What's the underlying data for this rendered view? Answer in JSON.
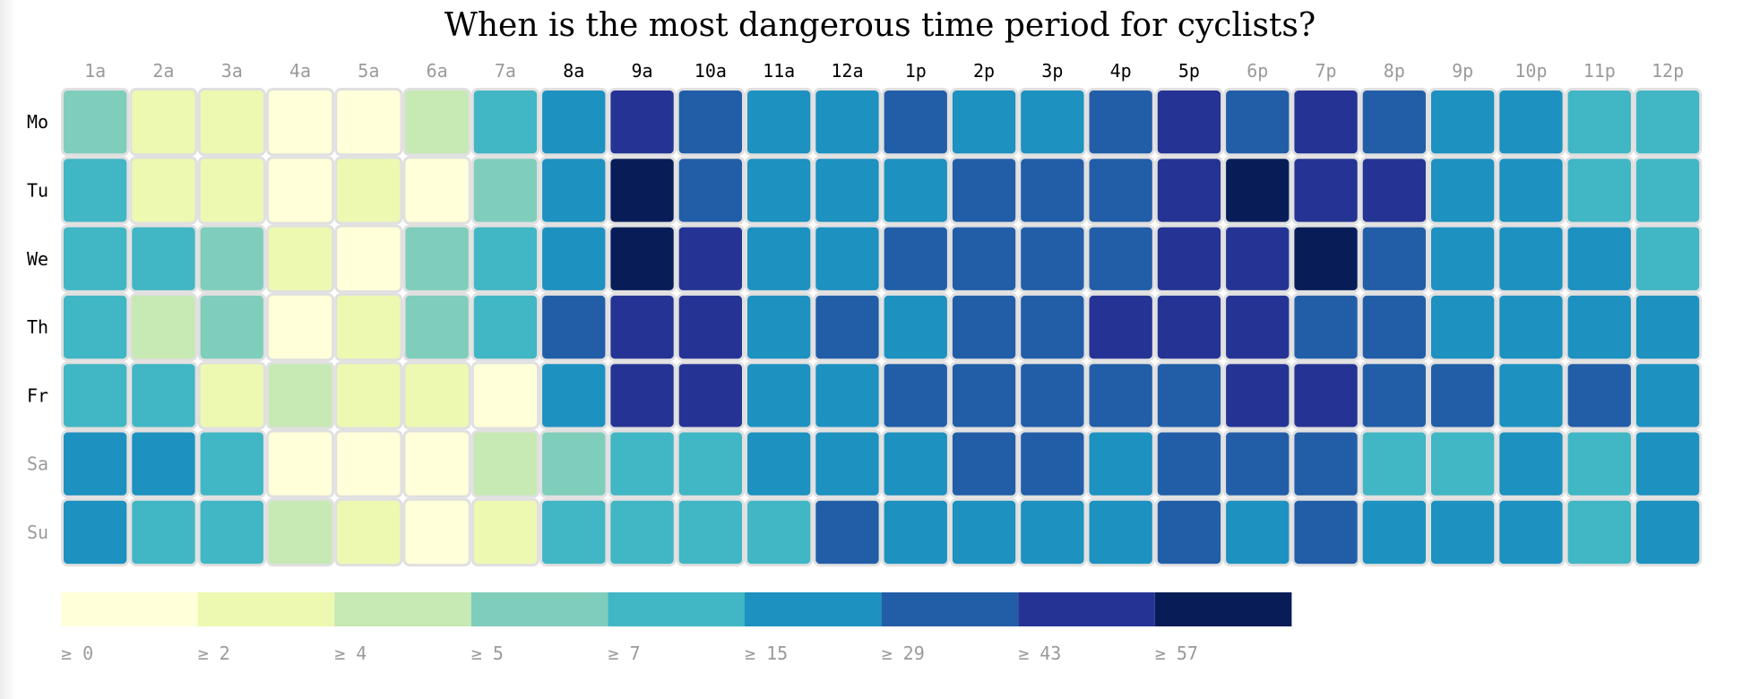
{
  "chart_data": {
    "type": "heatmap",
    "title": "When is the most dangerous time period for cyclists?",
    "x": [
      "1a",
      "2a",
      "3a",
      "4a",
      "5a",
      "6a",
      "7a",
      "8a",
      "9a",
      "10a",
      "11a",
      "12a",
      "1p",
      "2p",
      "3p",
      "4p",
      "5p",
      "6p",
      "7p",
      "8p",
      "9p",
      "10p",
      "11p",
      "12p"
    ],
    "y": [
      "Mo",
      "Tu",
      "We",
      "Th",
      "Fr",
      "Sa",
      "Su"
    ],
    "x_highlight": [
      false,
      false,
      false,
      false,
      false,
      false,
      false,
      true,
      true,
      true,
      true,
      true,
      true,
      true,
      true,
      true,
      true,
      false,
      false,
      false,
      false,
      false,
      false,
      false
    ],
    "y_highlight": [
      true,
      true,
      true,
      true,
      true,
      false,
      false
    ],
    "thresholds": [
      0,
      2,
      4,
      5,
      7,
      15,
      29,
      43,
      57
    ],
    "colors": [
      "#ffffd9",
      "#edf8b1",
      "#c7e9b4",
      "#7fcdbb",
      "#41b6c4",
      "#1d91c0",
      "#225ea8",
      "#253494",
      "#081d58"
    ],
    "legend_labels": [
      "≥ 0",
      "≥ 2",
      "≥ 4",
      "≥ 5",
      "≥ 7",
      "≥ 15",
      "≥ 29",
      "≥ 43",
      "≥ 57"
    ],
    "legend_placement": "bottom-left",
    "values": [
      [
        5,
        2,
        2,
        0,
        0,
        4,
        7,
        15,
        43,
        29,
        15,
        15,
        29,
        15,
        15,
        29,
        43,
        29,
        43,
        29,
        15,
        15,
        7,
        7
      ],
      [
        7,
        2,
        2,
        0,
        2,
        0,
        5,
        15,
        57,
        29,
        15,
        15,
        15,
        29,
        29,
        29,
        43,
        57,
        43,
        43,
        15,
        15,
        7,
        7
      ],
      [
        7,
        7,
        5,
        2,
        0,
        5,
        7,
        15,
        57,
        43,
        15,
        15,
        29,
        29,
        29,
        29,
        43,
        43,
        57,
        29,
        15,
        15,
        15,
        7
      ],
      [
        7,
        4,
        5,
        0,
        2,
        5,
        7,
        29,
        43,
        43,
        15,
        29,
        15,
        29,
        29,
        43,
        43,
        43,
        29,
        29,
        15,
        15,
        15,
        15
      ],
      [
        7,
        7,
        2,
        4,
        2,
        2,
        0,
        15,
        43,
        43,
        15,
        15,
        29,
        29,
        29,
        29,
        29,
        43,
        43,
        29,
        29,
        15,
        29,
        15
      ],
      [
        15,
        15,
        7,
        0,
        0,
        0,
        4,
        5,
        7,
        7,
        15,
        15,
        15,
        29,
        29,
        15,
        29,
        29,
        29,
        7,
        7,
        15,
        7,
        15
      ],
      [
        15,
        7,
        7,
        4,
        2,
        0,
        2,
        7,
        7,
        7,
        7,
        29,
        15,
        15,
        15,
        15,
        29,
        15,
        29,
        15,
        15,
        15,
        7,
        15
      ]
    ],
    "label_color": "#000000",
    "label_color_muted": "#9a9a9a"
  }
}
